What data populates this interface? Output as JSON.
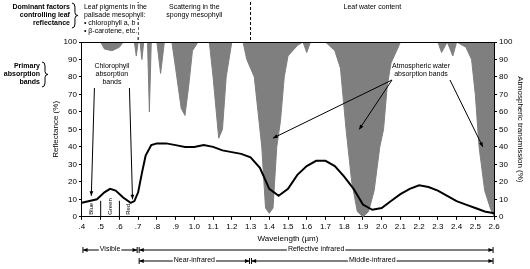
{
  "chart_data": {
    "type": "line",
    "x_label": "Wavelength (µm)",
    "y_label": "Reflectance (%)",
    "y2_label": "Atmospheric transmission (%)",
    "xlim": [
      0.4,
      2.6
    ],
    "xticks": [
      {
        "value": 0.4,
        "label": ".4"
      },
      {
        "value": 0.5,
        "label": ".5"
      },
      {
        "value": 0.6,
        "label": ".6"
      },
      {
        "value": 0.7,
        "label": ".7"
      },
      {
        "value": 0.8,
        "label": ".8"
      },
      {
        "value": 0.9,
        "label": ".9"
      },
      {
        "value": 1.0,
        "label": "1.0"
      },
      1.1,
      1.2,
      1.3,
      1.4,
      1.5,
      1.6,
      1.7,
      1.8,
      1.9,
      {
        "value": 2.0,
        "label": "2.0"
      },
      2.1,
      2.2,
      2.3,
      2.4,
      2.5,
      2.6
    ],
    "ylim": [
      0,
      100
    ],
    "yticks": [
      0,
      10,
      20,
      30,
      40,
      50,
      60,
      70,
      80,
      90,
      100
    ],
    "y2lim": [
      0,
      100
    ],
    "y2ticks": [
      0,
      10,
      20,
      30,
      40,
      50,
      60,
      70,
      80,
      90,
      100
    ],
    "grid": false,
    "series": [
      {
        "type": "line",
        "color": "#000000",
        "x": [
          0.4,
          0.44,
          0.48,
          0.52,
          0.55,
          0.58,
          0.62,
          0.66,
          0.68,
          0.7,
          0.72,
          0.74,
          0.77,
          0.8,
          0.85,
          0.9,
          0.95,
          1.0,
          1.05,
          1.1,
          1.15,
          1.2,
          1.25,
          1.3,
          1.35,
          1.4,
          1.45,
          1.5,
          1.55,
          1.6,
          1.65,
          1.7,
          1.75,
          1.8,
          1.85,
          1.9,
          1.95,
          2.0,
          2.05,
          2.1,
          2.15,
          2.2,
          2.25,
          2.3,
          2.35,
          2.4,
          2.45,
          2.5,
          2.55,
          2.6
        ],
        "values": [
          8,
          9,
          10,
          14,
          16,
          15,
          11,
          8,
          9,
          14,
          25,
          35,
          41,
          42,
          42,
          41,
          40,
          40,
          41,
          40,
          38,
          37,
          36,
          34,
          28,
          16,
          12,
          16,
          24,
          29,
          32,
          32,
          29,
          23,
          16,
          7,
          4,
          5,
          9,
          13,
          16,
          18,
          17,
          15,
          12,
          9,
          7,
          5,
          3,
          2
        ]
      },
      {
        "type": "area",
        "axis": "y2",
        "color": "#7f7f7f",
        "x": [
          0.4,
          0.5,
          0.52,
          0.56,
          0.6,
          0.62,
          0.68,
          0.69,
          0.7,
          0.71,
          0.72,
          0.73,
          0.75,
          0.76,
          0.77,
          0.8,
          0.82,
          0.84,
          0.88,
          0.9,
          0.93,
          0.95,
          0.97,
          0.99,
          1.02,
          1.08,
          1.1,
          1.13,
          1.15,
          1.17,
          1.2,
          1.26,
          1.28,
          1.32,
          1.36,
          1.38,
          1.4,
          1.42,
          1.44,
          1.46,
          1.48,
          1.5,
          1.55,
          1.58,
          1.6,
          1.62,
          1.7,
          1.75,
          1.78,
          1.81,
          1.84,
          1.87,
          1.9,
          1.93,
          1.96,
          1.99,
          2.01,
          2.03,
          2.05,
          2.08,
          2.1,
          2.3,
          2.32,
          2.35,
          2.38,
          2.4,
          2.45,
          2.48,
          2.5,
          2.52,
          2.55,
          2.58,
          2.6
        ],
        "values": [
          100,
          100,
          96,
          95,
          97,
          100,
          100,
          92,
          100,
          100,
          90,
          100,
          100,
          60,
          100,
          100,
          82,
          100,
          100,
          85,
          62,
          58,
          75,
          95,
          100,
          100,
          80,
          45,
          50,
          80,
          100,
          100,
          90,
          80,
          40,
          5,
          2,
          5,
          40,
          55,
          80,
          92,
          98,
          100,
          94,
          100,
          100,
          95,
          85,
          50,
          20,
          3,
          0,
          3,
          15,
          40,
          50,
          75,
          88,
          95,
          100,
          100,
          94,
          100,
          92,
          100,
          97,
          90,
          70,
          40,
          15,
          5,
          0
        ]
      }
    ],
    "header": {
      "text": [
        "Dominant factors",
        "controlling leaf",
        "reflectance"
      ],
      "factors": [
        {
          "text": [
            "Leaf pigments in the",
            "palisade mesophyll:",
            "• chlorophyll a, b",
            "• β-carotene, etc."
          ],
          "range": [
            0.4,
            0.7
          ]
        },
        {
          "text": [
            "Scattering in the",
            "spongy mesophyll"
          ],
          "range": [
            0.7,
            1.3
          ]
        },
        {
          "text": [
            "Leaf water content"
          ],
          "range": [
            1.3,
            2.6
          ]
        }
      ]
    },
    "absorption": {
      "text": [
        "Primary",
        "absorption",
        "bands"
      ],
      "groups": [
        {
          "text": [
            "Chlorophyll",
            "absorption",
            "bands"
          ],
          "targets": [
            [
              0.45,
              12
            ],
            [
              0.67,
              10
            ]
          ]
        },
        {
          "text": [
            "Atmospheric water",
            "absorption bands"
          ],
          "targets": [
            [
              1.42,
              45
            ],
            [
              1.88,
              50
            ],
            [
              2.54,
              40
            ]
          ]
        }
      ]
    },
    "color_bands": [
      {
        "text": "Blue",
        "range": [
          0.4,
          0.5
        ]
      },
      {
        "text": "Green",
        "range": [
          0.5,
          0.6
        ]
      },
      {
        "text": "Red",
        "range": [
          0.6,
          0.7
        ]
      }
    ],
    "regions": [
      [
        {
          "text": "Visible",
          "range": [
            0.4,
            0.7
          ]
        },
        {
          "text": "Reflective infrared",
          "range": [
            0.7,
            2.6
          ]
        }
      ],
      [
        {
          "text": "Near-infrared",
          "range": [
            0.7,
            1.3
          ]
        },
        {
          "text": "Middle-infrared",
          "range": [
            1.3,
            2.6
          ]
        }
      ]
    ]
  }
}
